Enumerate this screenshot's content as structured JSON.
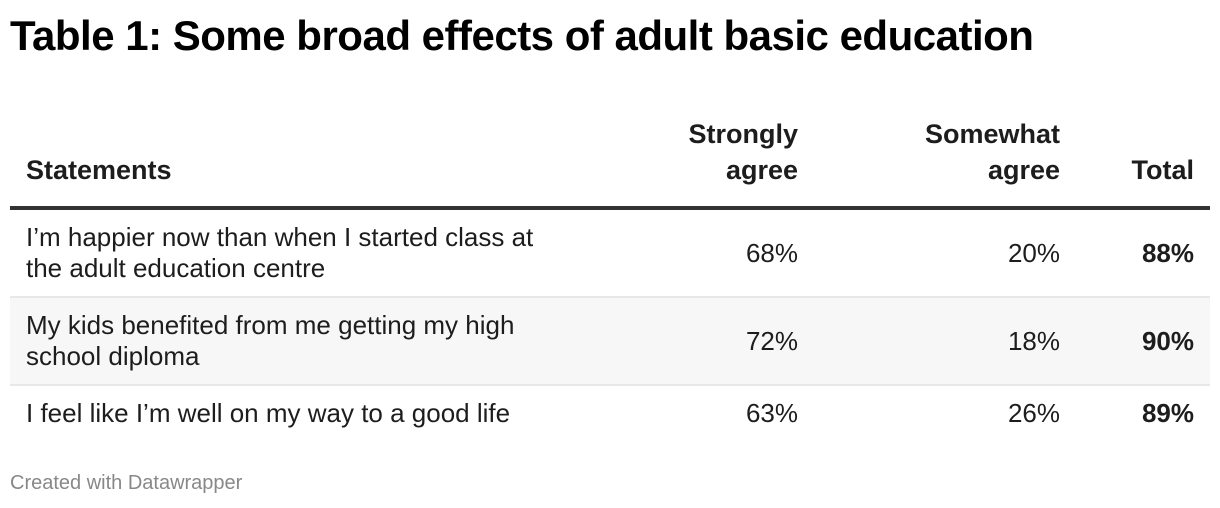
{
  "title": "Table 1: Some broad effects of adult basic education",
  "columns": {
    "statements": "Statements",
    "strongly_agree_1": "Strongly",
    "strongly_agree_2": "agree",
    "somewhat_agree_1": "Somewhat",
    "somewhat_agree_2": "agree",
    "total": "Total"
  },
  "rows": [
    {
      "statement_1": "I’m happier now than when I started class at",
      "statement_2": "the adult education centre",
      "strongly": "68%",
      "somewhat": "20%",
      "total": "88%"
    },
    {
      "statement_1": "My kids benefited from me getting my high",
      "statement_2": "school diploma",
      "strongly": "72%",
      "somewhat": "18%",
      "total": "90%"
    },
    {
      "statement_1": "I feel like I’m well on my way to a good life",
      "statement_2": "",
      "strongly": "63%",
      "somewhat": "26%",
      "total": "89%"
    }
  ],
  "footer": "Created with Datawrapper",
  "chart_data": {
    "type": "table",
    "title": "Table 1: Some broad effects of adult basic education",
    "columns": [
      "Statements",
      "Strongly agree",
      "Somewhat agree",
      "Total"
    ],
    "rows": [
      [
        "I’m happier now than when I started class at the adult education centre",
        "68%",
        "20%",
        "88%"
      ],
      [
        "My kids benefited from me getting my high school diploma",
        "72%",
        "18%",
        "90%"
      ],
      [
        "I feel like I’m well on my way to a good life",
        "63%",
        "26%",
        "89%"
      ]
    ],
    "series": [
      {
        "name": "Strongly agree",
        "values": [
          68,
          72,
          63
        ]
      },
      {
        "name": "Somewhat agree",
        "values": [
          20,
          18,
          26
        ]
      },
      {
        "name": "Total",
        "values": [
          88,
          90,
          89
        ]
      }
    ],
    "categories": [
      "I’m happier now than when I started class at the adult education centre",
      "My kids benefited from me getting my high school diploma",
      "I feel like I’m well on my way to a good life"
    ],
    "footer": "Created with Datawrapper"
  }
}
